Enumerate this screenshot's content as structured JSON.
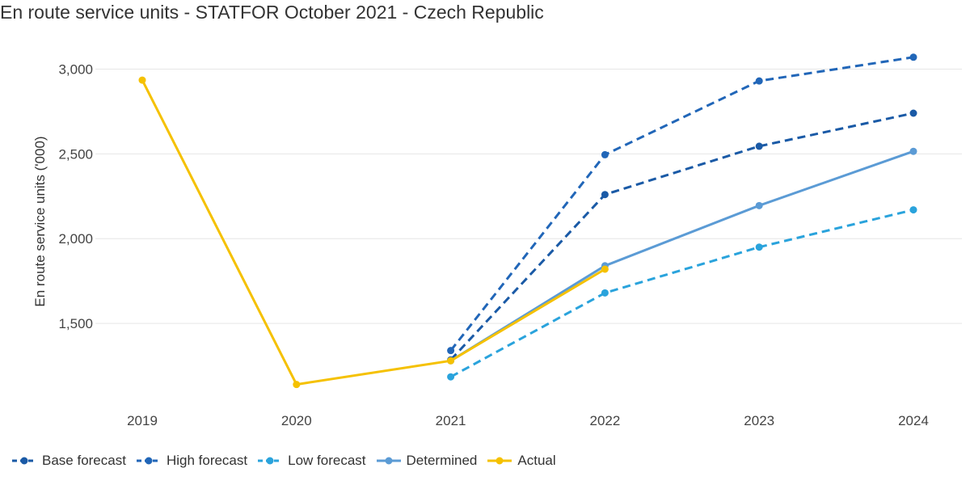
{
  "chart_data": {
    "type": "line",
    "title": "En route service units - STATFOR October 2021 - Czech Republic",
    "xlabel": "",
    "ylabel": "En route service units ('000)",
    "ylim": [
      1000,
      3150
    ],
    "yticks": [
      1500,
      2000,
      2500,
      3000
    ],
    "ytick_labels": [
      "1,500",
      "2,000",
      "2,500",
      "3,000"
    ],
    "categories": [
      "2019",
      "2020",
      "2021",
      "2022",
      "2023",
      "2024"
    ],
    "grid": true,
    "legend_position": "bottom-left",
    "series": [
      {
        "name": "Base forecast",
        "style": "dashed",
        "color": "#1a5aa6",
        "values": [
          null,
          null,
          1285,
          2260,
          2545,
          2740
        ]
      },
      {
        "name": "High forecast",
        "style": "dashed",
        "color": "#2166b8",
        "values": [
          null,
          null,
          1340,
          2495,
          2930,
          3070
        ]
      },
      {
        "name": "Low forecast",
        "style": "dashed",
        "color": "#2aa3dc",
        "values": [
          null,
          null,
          1185,
          1680,
          1950,
          2170
        ]
      },
      {
        "name": "Determined",
        "style": "solid",
        "color": "#5b9bd5",
        "values": [
          null,
          null,
          1280,
          1840,
          2195,
          2515
        ]
      },
      {
        "name": "Actual",
        "style": "solid",
        "color": "#f5c100",
        "values": [
          2935,
          1140,
          1280,
          1820,
          null,
          null
        ]
      }
    ]
  }
}
